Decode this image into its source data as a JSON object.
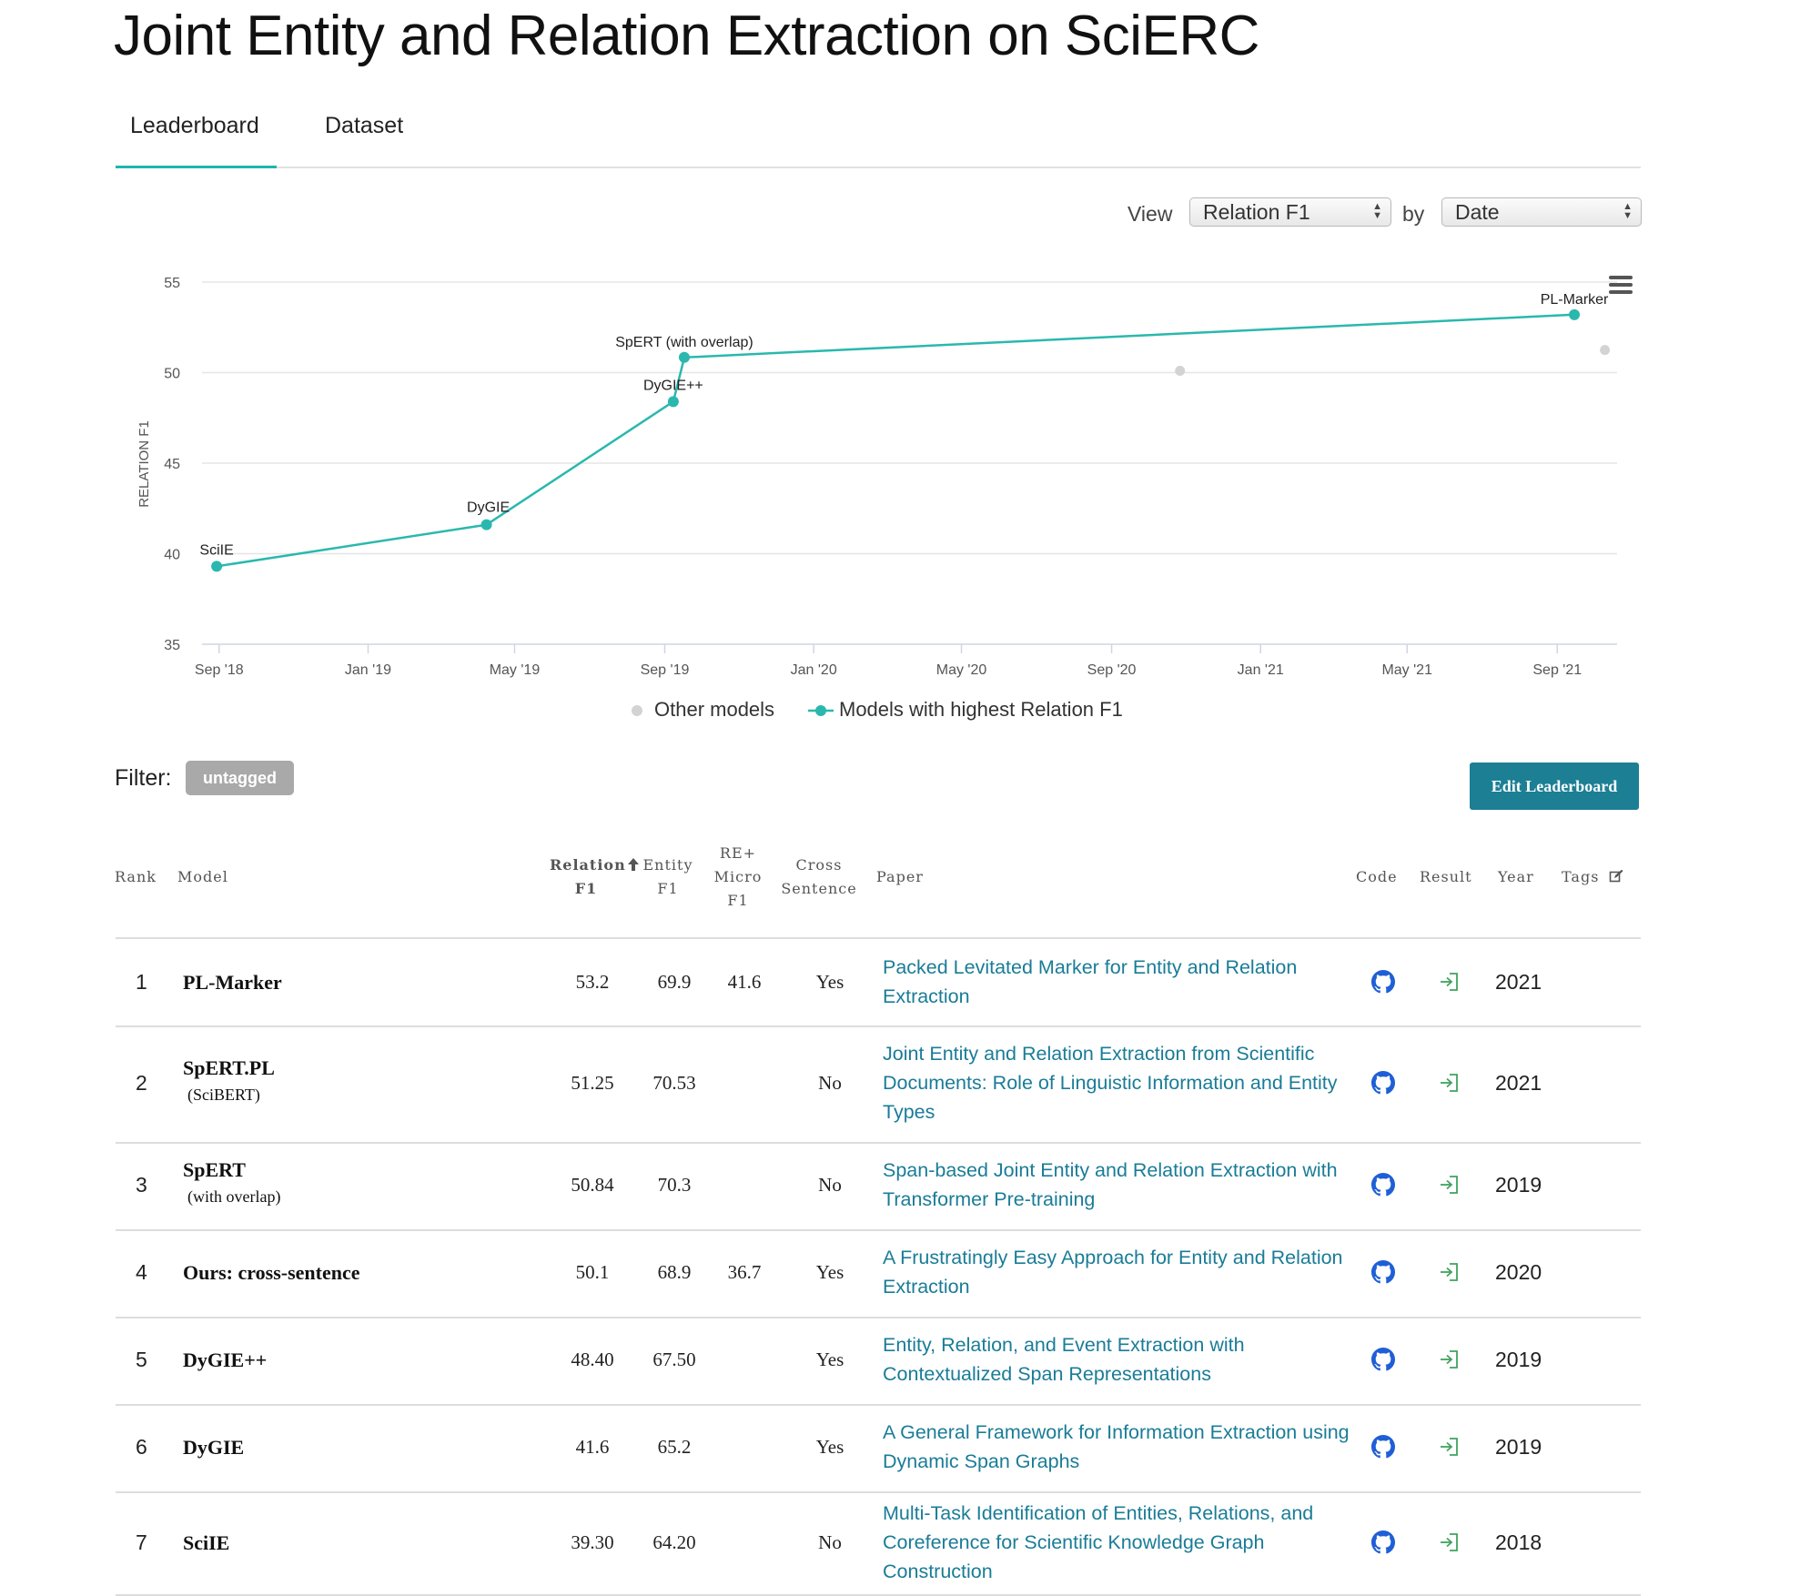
{
  "page_title": "Joint Entity and Relation Extraction on SciERC",
  "tabs": [
    {
      "label": "Leaderboard",
      "active": true
    },
    {
      "label": "Dataset",
      "active": false
    }
  ],
  "view_controls": {
    "view_label": "View",
    "view_value": "Relation F1",
    "by_label": "by",
    "by_value": "Date"
  },
  "chart_data": {
    "type": "line",
    "ylabel": "RELATION F1",
    "ylim": [
      35,
      55
    ],
    "yticks": [
      35,
      40,
      45,
      50,
      55
    ],
    "xlim": [
      "2018-08-18",
      "2021-10-20"
    ],
    "xticks": [
      "Sep '18",
      "Jan '19",
      "May '19",
      "Sep '19",
      "Jan '20",
      "May '20",
      "Sep '20",
      "Jan '21",
      "May '21",
      "Sep '21"
    ],
    "grid": true,
    "legend_placement": "bottom-center",
    "series": [
      {
        "name": "Models with highest Relation F1",
        "color": "#2ab8ae",
        "points": [
          {
            "x": "2018-08-30",
            "y": 39.3,
            "label": "SciIE"
          },
          {
            "x": "2019-04-08",
            "y": 41.6,
            "label": "DyGIE"
          },
          {
            "x": "2019-09-08",
            "y": 48.4,
            "label": "DyGIE++"
          },
          {
            "x": "2019-09-17",
            "y": 50.84,
            "label": "SpERT (with overlap)"
          },
          {
            "x": "2021-09-15",
            "y": 53.2,
            "label": "PL-Marker"
          }
        ]
      },
      {
        "name": "Other models",
        "color": "#d3d3d3",
        "points": [
          {
            "x": "2020-10-27",
            "y": 50.1
          },
          {
            "x": "2021-10-10",
            "y": 51.25
          }
        ]
      }
    ]
  },
  "filter": {
    "label": "Filter:",
    "tag": "untagged"
  },
  "edit_button_label": "Edit Leaderboard",
  "table": {
    "headers": {
      "rank": "Rank",
      "model": "Model",
      "relation_f1": [
        "Relation",
        "F1"
      ],
      "entity_f1": [
        "Entity",
        "F1"
      ],
      "re_micro_f1": [
        "RE+",
        "Micro",
        "F1"
      ],
      "cross_sentence": [
        "Cross",
        "Sentence"
      ],
      "paper": "Paper",
      "code": "Code",
      "result": "Result",
      "year": "Year",
      "tags": "Tags"
    },
    "rows": [
      {
        "rank": "1",
        "model": "PL-Marker",
        "model_sub": "",
        "relation_f1": "53.2",
        "entity_f1": "69.9",
        "re_micro_f1": "41.6",
        "cross_sentence": "Yes",
        "paper": "Packed Levitated Marker for Entity and Relation Extraction",
        "year": "2021"
      },
      {
        "rank": "2",
        "model": "SpERT.PL",
        "model_sub": "(SciBERT)",
        "relation_f1": "51.25",
        "entity_f1": "70.53",
        "re_micro_f1": "",
        "cross_sentence": "No",
        "paper": "Joint Entity and Relation Extraction from Scientific Documents: Role of Linguistic Information and Entity Types",
        "year": "2021"
      },
      {
        "rank": "3",
        "model": "SpERT",
        "model_sub": "(with overlap)",
        "relation_f1": "50.84",
        "entity_f1": "70.3",
        "re_micro_f1": "",
        "cross_sentence": "No",
        "paper": "Span-based Joint Entity and Relation Extraction with Transformer Pre-training",
        "year": "2019"
      },
      {
        "rank": "4",
        "model": "Ours: cross-sentence",
        "model_sub": "",
        "relation_f1": "50.1",
        "entity_f1": "68.9",
        "re_micro_f1": "36.7",
        "cross_sentence": "Yes",
        "paper": "A Frustratingly Easy Approach for Entity and Relation Extraction",
        "year": "2020"
      },
      {
        "rank": "5",
        "model": "DyGIE++",
        "model_sub": "",
        "relation_f1": "48.40",
        "entity_f1": "67.50",
        "re_micro_f1": "",
        "cross_sentence": "Yes",
        "paper": "Entity, Relation, and Event Extraction with Contextualized Span Representations",
        "year": "2019"
      },
      {
        "rank": "6",
        "model": "DyGIE",
        "model_sub": "",
        "relation_f1": "41.6",
        "entity_f1": "65.2",
        "re_micro_f1": "",
        "cross_sentence": "Yes",
        "paper": "A General Framework for Information Extraction using Dynamic Span Graphs",
        "year": "2019"
      },
      {
        "rank": "7",
        "model": "SciIE",
        "model_sub": "",
        "relation_f1": "39.30",
        "entity_f1": "64.20",
        "re_micro_f1": "",
        "cross_sentence": "No",
        "paper": "Multi-Task Identification of Entities, Relations, and Coreference for Scientific Knowledge Graph Construction",
        "year": "2018"
      }
    ]
  },
  "icons": {
    "sort": "arrow-up-icon",
    "tags_edit": "edit-icon",
    "code": "github-icon",
    "result": "sign-in-icon",
    "chart_menu": "hamburger-menu-icon"
  },
  "colors": {
    "accent": "#21b5ad",
    "link": "#1a7c97",
    "button": "#1c7f94",
    "github": "#1f5fd6",
    "result": "#3fa35f"
  }
}
